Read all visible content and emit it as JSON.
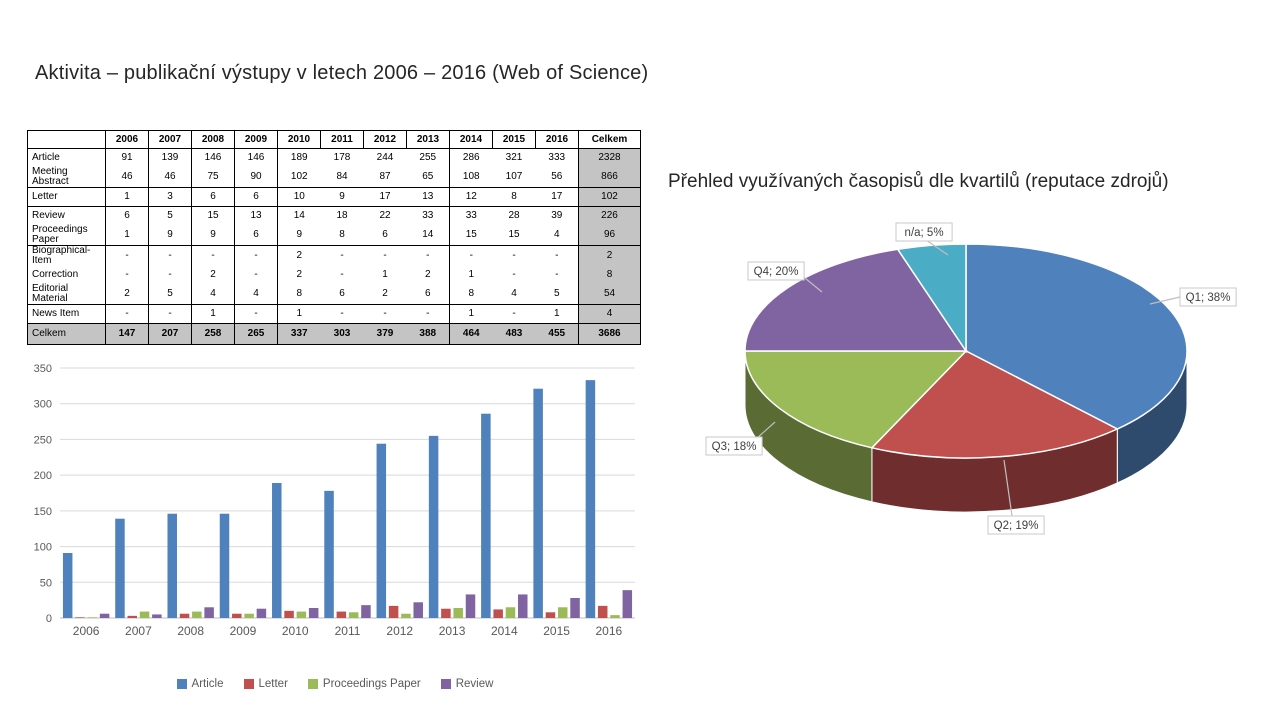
{
  "slide": {
    "title_left": "Aktivita – publikační výstupy v letech 2006 – 2016 (Web of Science)",
    "title_right": "Přehled využívaných časopisů dle kvartilů (reputace zdrojů)"
  },
  "table": {
    "columns": [
      "",
      "2006",
      "2007",
      "2008",
      "2009",
      "2010",
      "2011",
      "2012",
      "2013",
      "2014",
      "2015",
      "2016",
      "Celkem"
    ],
    "rows": [
      {
        "label": "Article",
        "values": [
          "91",
          "139",
          "146",
          "146",
          "189",
          "178",
          "244",
          "255",
          "286",
          "321",
          "333"
        ],
        "total": "2328"
      },
      {
        "label": "Meeting Abstract",
        "values": [
          "46",
          "46",
          "75",
          "90",
          "102",
          "84",
          "87",
          "65",
          "108",
          "107",
          "56"
        ],
        "total": "866"
      },
      {
        "label": "Letter",
        "values": [
          "1",
          "3",
          "6",
          "6",
          "10",
          "9",
          "17",
          "13",
          "12",
          "8",
          "17"
        ],
        "total": "102"
      },
      {
        "label": "Review",
        "values": [
          "6",
          "5",
          "15",
          "13",
          "14",
          "18",
          "22",
          "33",
          "33",
          "28",
          "39"
        ],
        "total": "226"
      },
      {
        "label": "Proceedings Paper",
        "values": [
          "1",
          "9",
          "9",
          "6",
          "9",
          "8",
          "6",
          "14",
          "15",
          "15",
          "4"
        ],
        "total": "96"
      },
      {
        "label": "Biographical-Item",
        "values": [
          "-",
          "-",
          "-",
          "-",
          "2",
          "-",
          "-",
          "-",
          "-",
          "-",
          "-"
        ],
        "total": "2"
      },
      {
        "label": "Correction",
        "values": [
          "-",
          "-",
          "2",
          "-",
          "2",
          "-",
          "1",
          "2",
          "1",
          "-",
          "-"
        ],
        "total": "8"
      },
      {
        "label": "Editorial Material",
        "values": [
          "2",
          "5",
          "4",
          "4",
          "8",
          "6",
          "2",
          "6",
          "8",
          "4",
          "5"
        ],
        "total": "54"
      },
      {
        "label": "News Item",
        "values": [
          "-",
          "-",
          "1",
          "-",
          "1",
          "-",
          "-",
          "-",
          "1",
          "-",
          "1"
        ],
        "total": "4"
      }
    ],
    "total_row": {
      "label": "Celkem",
      "values": [
        "147",
        "207",
        "258",
        "265",
        "337",
        "303",
        "379",
        "388",
        "464",
        "483",
        "455"
      ],
      "total": "3686"
    },
    "group_end_rows": [
      1,
      2,
      4,
      7,
      8
    ],
    "shaded_color": "#C4C4C4"
  },
  "chart_data": [
    {
      "type": "bar",
      "title": "",
      "categories": [
        "2006",
        "2007",
        "2008",
        "2009",
        "2010",
        "2011",
        "2012",
        "2013",
        "2014",
        "2015",
        "2016"
      ],
      "series": [
        {
          "name": "Article",
          "color": "#4F81BD",
          "values": [
            91,
            139,
            146,
            146,
            189,
            178,
            244,
            255,
            286,
            321,
            333
          ]
        },
        {
          "name": "Letter",
          "color": "#C0504D",
          "values": [
            1,
            3,
            6,
            6,
            10,
            9,
            17,
            13,
            12,
            8,
            17
          ]
        },
        {
          "name": "Proceedings Paper",
          "color": "#9BBB59",
          "values": [
            1,
            9,
            9,
            6,
            9,
            8,
            6,
            14,
            15,
            15,
            4
          ]
        },
        {
          "name": "Review",
          "color": "#8064A2",
          "values": [
            6,
            5,
            15,
            13,
            14,
            18,
            22,
            33,
            33,
            28,
            39
          ]
        }
      ],
      "xlabel": "",
      "ylabel": "",
      "ylim": [
        0,
        350
      ],
      "ytick": 50,
      "grid": true,
      "legend_position": "bottom",
      "axis_text_color": "#595959",
      "grid_color": "#D9D9D9"
    },
    {
      "type": "pie",
      "effect": "3d",
      "labels": [
        "Q1",
        "Q2",
        "Q3",
        "Q4",
        "n/a"
      ],
      "values": [
        38,
        19,
        18,
        20,
        5
      ],
      "colors": [
        "#4F81BD",
        "#C0504D",
        "#9BBB59",
        "#8064A2",
        "#4BACC6"
      ],
      "label_texts": [
        "Q1; 38%",
        "Q2; 19%",
        "Q3; 18%",
        "Q4; 20%",
        "n/a; 5%"
      ],
      "start_angle_deg": 0,
      "direction": "clockwise",
      "legend_position": "none"
    }
  ]
}
